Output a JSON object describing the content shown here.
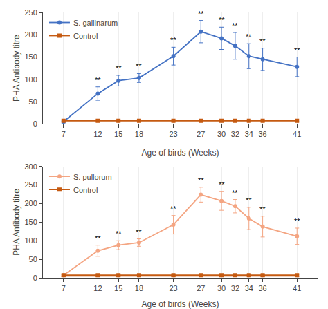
{
  "chart_data": [
    {
      "type": "line",
      "x": [
        7,
        12,
        15,
        18,
        23,
        27,
        30,
        32,
        34,
        36,
        41
      ],
      "xlabel": "Age of birds (Weeks)",
      "ylabel": "PHA Antibody titre",
      "xlim": [
        4,
        44
      ],
      "xticks": [
        7,
        12,
        15,
        18,
        23,
        27,
        30,
        32,
        34,
        36,
        41
      ],
      "ylim": [
        0,
        250
      ],
      "yticks": [
        0,
        50,
        100,
        150,
        200,
        250
      ],
      "grid": "x",
      "legend": "upper left",
      "series": [
        {
          "name": "S. gallinarum",
          "color": "#4472C4",
          "marker": "circle",
          "values": [
            5,
            68,
            97,
            103,
            152,
            207,
            192,
            175,
            152,
            145,
            128
          ],
          "errors": [
            3,
            15,
            12,
            10,
            20,
            25,
            25,
            30,
            28,
            25,
            22
          ]
        },
        {
          "name": "Control",
          "color": "#C55A11",
          "marker": "square",
          "values": [
            7,
            7,
            7,
            7,
            7,
            7,
            7,
            7,
            7,
            7,
            7
          ],
          "errors": [
            2,
            2,
            2,
            2,
            2,
            2,
            2,
            2,
            2,
            2,
            2
          ]
        }
      ],
      "annotations": [
        {
          "x": 12,
          "text": "**",
          "series": "S. gallinarum"
        },
        {
          "x": 15,
          "text": "**",
          "series": "S. gallinarum"
        },
        {
          "x": 18,
          "text": "**",
          "series": "S. gallinarum"
        },
        {
          "x": 23,
          "text": "**",
          "series": "S. gallinarum"
        },
        {
          "x": 27,
          "text": "**",
          "series": "S. gallinarum"
        },
        {
          "x": 30,
          "text": "**",
          "series": "S. gallinarum"
        },
        {
          "x": 32,
          "text": "**",
          "series": "S. gallinarum"
        },
        {
          "x": 34,
          "text": "**",
          "series": "S. gallinarum"
        },
        {
          "x": 36,
          "text": "**",
          "series": "S. gallinarum"
        },
        {
          "x": 41,
          "text": "**",
          "series": "S. gallinarum"
        }
      ]
    },
    {
      "type": "line",
      "x": [
        7,
        12,
        15,
        18,
        23,
        27,
        30,
        32,
        34,
        36,
        41
      ],
      "xlabel": "Age of birds (Weeks)",
      "ylabel": "PHA Antibody titre",
      "xlim": [
        4,
        44
      ],
      "xticks": [
        7,
        12,
        15,
        18,
        23,
        27,
        30,
        32,
        34,
        36,
        41
      ],
      "ylim": [
        0,
        300
      ],
      "yticks": [
        0,
        50,
        100,
        150,
        200,
        250,
        300
      ],
      "grid": "x",
      "legend": "upper left",
      "series": [
        {
          "name": "S. pullorum",
          "color": "#F4A582",
          "marker": "circle",
          "values": [
            7,
            73,
            88,
            95,
            143,
            224,
            207,
            193,
            160,
            138,
            112
          ],
          "errors": [
            3,
            15,
            12,
            10,
            25,
            20,
            25,
            18,
            30,
            28,
            22
          ]
        },
        {
          "name": "Control",
          "color": "#C55A11",
          "marker": "square",
          "values": [
            7,
            7,
            7,
            7,
            7,
            7,
            7,
            7,
            7,
            7,
            7
          ],
          "errors": [
            2,
            2,
            2,
            2,
            2,
            2,
            2,
            2,
            2,
            2,
            2
          ]
        }
      ],
      "annotations": [
        {
          "x": 12,
          "text": "**",
          "series": "S. pullorum"
        },
        {
          "x": 15,
          "text": "**",
          "series": "S. pullorum"
        },
        {
          "x": 18,
          "text": "**",
          "series": "S. pullorum"
        },
        {
          "x": 23,
          "text": "**",
          "series": "S. pullorum"
        },
        {
          "x": 27,
          "text": "**",
          "series": "S. pullorum"
        },
        {
          "x": 30,
          "text": "**",
          "series": "S. pullorum"
        },
        {
          "x": 32,
          "text": "**",
          "series": "S. pullorum"
        },
        {
          "x": 34,
          "text": "**",
          "series": "S. pullorum"
        },
        {
          "x": 36,
          "text": "**",
          "series": "S. pullorum"
        },
        {
          "x": 41,
          "text": "**",
          "series": "S. pullorum"
        }
      ]
    }
  ]
}
